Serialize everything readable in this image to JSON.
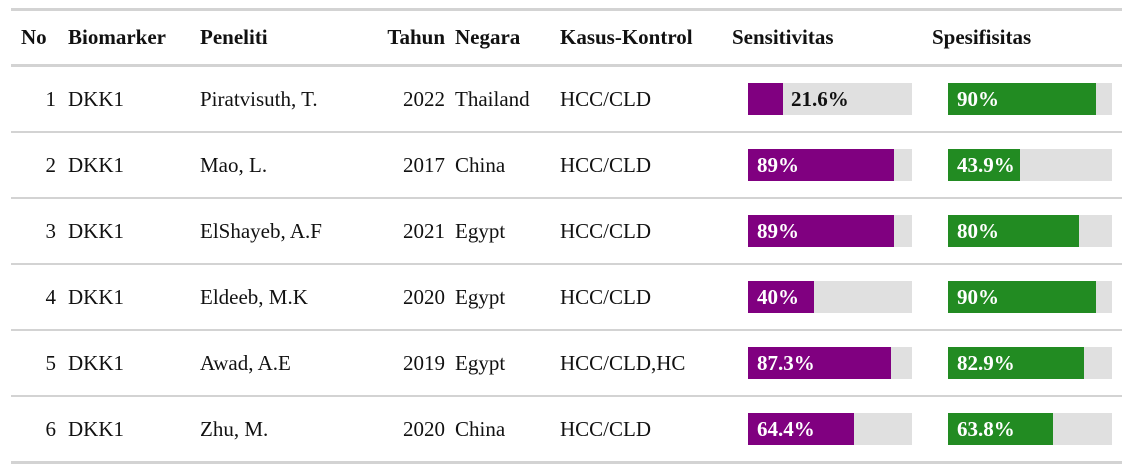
{
  "colors": {
    "sensitivity_fill": "#800080",
    "specificity_fill": "#228b22",
    "track": "#e0e0e0",
    "rule": "#d3d3d3"
  },
  "table": {
    "headers": {
      "no": "No",
      "biomarker": "Biomarker",
      "peneliti": "Peneliti",
      "tahun": "Tahun",
      "negara": "Negara",
      "kasus_kontrol": "Kasus-Kontrol",
      "sensitivitas": "Sensitivitas",
      "spesifisitas": "Spesifisitas"
    },
    "rows": [
      {
        "no": "1",
        "biomarker": "DKK1",
        "peneliti": "Piratvisuth, T.",
        "tahun": "2022",
        "negara": "Thailand",
        "kasus_kontrol": "HCC/CLD",
        "sensitivitas": "21.6%",
        "sensitivitas_value": 21.6,
        "spesifisitas": "90%",
        "spesifisitas_value": 90
      },
      {
        "no": "2",
        "biomarker": "DKK1",
        "peneliti": "Mao, L.",
        "tahun": "2017",
        "negara": "China",
        "kasus_kontrol": "HCC/CLD",
        "sensitivitas": "89%",
        "sensitivitas_value": 89,
        "spesifisitas": "43.9%",
        "spesifisitas_value": 43.9
      },
      {
        "no": "3",
        "biomarker": "DKK1",
        "peneliti": "ElShayeb, A.F",
        "tahun": "2021",
        "negara": "Egypt",
        "kasus_kontrol": "HCC/CLD",
        "sensitivitas": "89%",
        "sensitivitas_value": 89,
        "spesifisitas": "80%",
        "spesifisitas_value": 80
      },
      {
        "no": "4",
        "biomarker": "DKK1",
        "peneliti": "Eldeeb, M.K",
        "tahun": "2020",
        "negara": "Egypt",
        "kasus_kontrol": "HCC/CLD",
        "sensitivitas": "40%",
        "sensitivitas_value": 40,
        "spesifisitas": "90%",
        "spesifisitas_value": 90
      },
      {
        "no": "5",
        "biomarker": "DKK1",
        "peneliti": "Awad, A.E",
        "tahun": "2019",
        "negara": "Egypt",
        "kasus_kontrol": "HCC/CLD,HC",
        "sensitivitas": "87.3%",
        "sensitivitas_value": 87.3,
        "spesifisitas": "82.9%",
        "spesifisitas_value": 82.9
      },
      {
        "no": "6",
        "biomarker": "DKK1",
        "peneliti": "Zhu, M.",
        "tahun": "2020",
        "negara": "China",
        "kasus_kontrol": "HCC/CLD",
        "sensitivitas": "64.4%",
        "sensitivitas_value": 64.4,
        "spesifisitas": "63.8%",
        "spesifisitas_value": 63.8
      }
    ]
  }
}
